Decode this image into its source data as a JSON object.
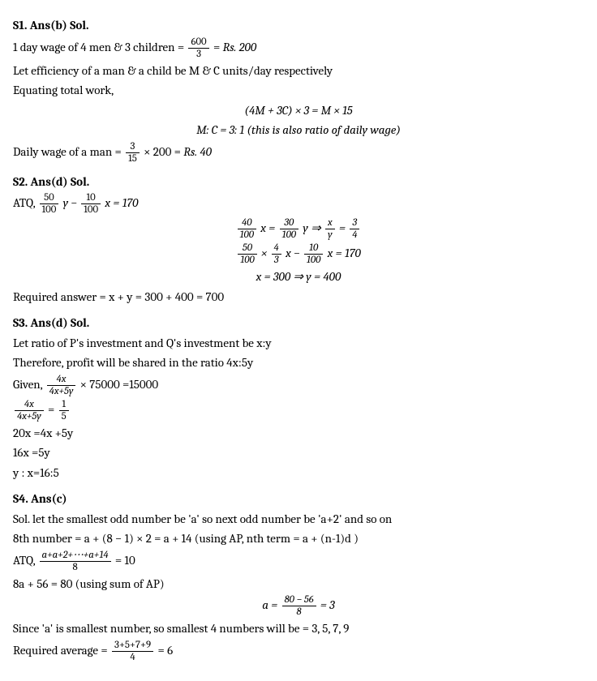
{
  "solutions": {
    "s1": {
      "header": "S1. Ans(b) Sol.",
      "line1_a": "1 day wage of 4 men & 3 children = ",
      "line1_frac_num": "600",
      "line1_frac_den": "3",
      "line1_c": " = ",
      "line1_d": "Rs. 200",
      "line2": "Let efficiency of a man & a child be M & C units/day respectively",
      "line3": "Equating total work,",
      "eq1": "(4M + 3C) × 3 = M × 15",
      "eq2_a": "M: C = 3: 1 (",
      "eq2_b": "this is also ratio of daily wage",
      "eq2_c": ")",
      "line4_a": "Daily wage of a man = ",
      "line4_frac_num": "3",
      "line4_frac_den": "15",
      "line4_c": " × 200 = ",
      "line4_d": "Rs. 40"
    },
    "s2": {
      "header": "S2. Ans(d) Sol.",
      "line1_a": "ATQ,",
      "line1_frac1_num": "50",
      "line1_frac1_den": "100",
      "line1_c": "y − ",
      "line1_frac2_num": "10",
      "line1_frac2_den": "100",
      "line1_e": "x = 170",
      "eq1_frac1_num": "40",
      "eq1_frac1_den": "100",
      "eq1_b": "x = ",
      "eq1_frac2_num": "30",
      "eq1_frac2_den": "100",
      "eq1_d": "y ⇒ ",
      "eq1_frac3_num": "x",
      "eq1_frac3_den": "y",
      "eq1_f": " = ",
      "eq1_frac4_num": "3",
      "eq1_frac4_den": "4",
      "eq2_frac1_num": "50",
      "eq2_frac1_den": "100",
      "eq2_b": " × ",
      "eq2_frac2_num": "4",
      "eq2_frac2_den": "3",
      "eq2_d": "x − ",
      "eq2_frac3_num": "10",
      "eq2_frac3_den": "100",
      "eq2_f": "x = 170",
      "eq3": "x = 300 ⇒ y = 400",
      "line2": "Required answer = x + y = 300 + 400 = 700"
    },
    "s3": {
      "header": "S3. Ans(d) Sol.",
      "line1": "Let ratio of P's investment and Q's investment be x:y",
      "line2": "Therefore, profit will be shared in the ratio 4x:5y",
      "line3_a": "Given, ",
      "line3_frac_num": "4x",
      "line3_frac_den": "4x+5y",
      "line3_c": "× 75000 =15000",
      "line4_frac1_num": "4x",
      "line4_frac1_den": "4x+5y",
      "line4_b": "=",
      "line4_frac2_num": "1",
      "line4_frac2_den": "5",
      "line5": "20x =4x +5y",
      "line6": "16x =5y",
      "line7": "y : x=16:5"
    },
    "s4": {
      "header": "S4. Ans(c)",
      "line1": "Sol. let the smallest odd number be 'a' so next odd number be 'a+2' and so on",
      "line2": "8th number = a + (8 − 1) × 2 = a + 14 (using AP, nth term = a + (n-1)d )",
      "line3_a": "ATQ,        ",
      "line3_frac_num": "a+a+2+⋯+a+14",
      "line3_frac_den": "8",
      "line3_c": " = 10",
      "line4": "8a + 56 = 80 (using sum of AP)",
      "eq1_a": "a = ",
      "eq1_frac_num": "80 − 56",
      "eq1_frac_den": "8",
      "eq1_c": " = 3",
      "line5": "Since 'a' is smallest number, so smallest 4 numbers will be = 3, 5, 7, 9",
      "line6_a": "Required average = ",
      "line6_frac_num": "3+5+7+9",
      "line6_frac_den": "4",
      "line6_c": " = 6"
    }
  }
}
